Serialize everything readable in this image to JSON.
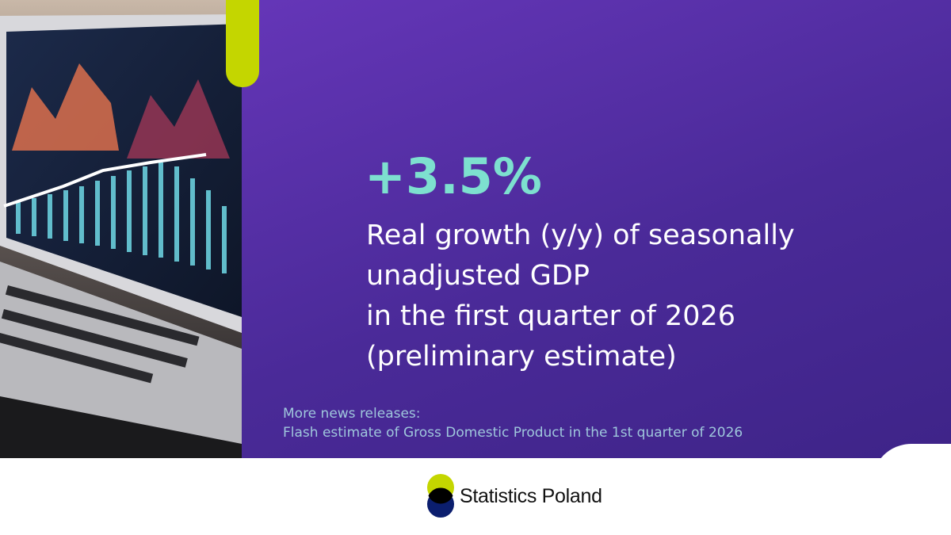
{
  "headline": {
    "value": "+3.5%",
    "description": [
      "Real growth (y/y) of seasonally",
      "unadjusted GDP",
      "in the first quarter of 2026",
      "(preliminary estimate)"
    ]
  },
  "more": {
    "label": "More news releases:",
    "link": "Flash estimate of Gross Domestic Product in the 1st quarter of 2026"
  },
  "footer": {
    "brand": "Statistics Poland"
  }
}
